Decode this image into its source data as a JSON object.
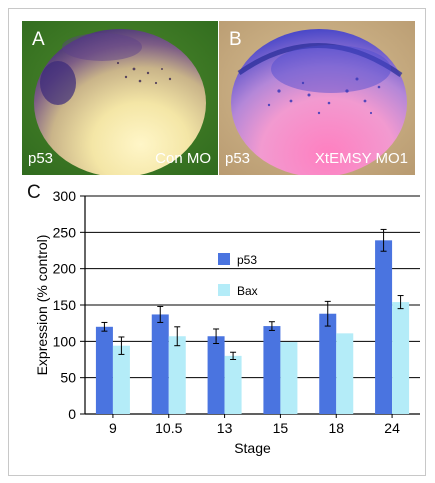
{
  "panel_a": {
    "letter": "A",
    "marker": "p53",
    "condition": "Con MO"
  },
  "panel_b": {
    "letter": "B",
    "marker": "p53",
    "condition": "XtEMSY MO1"
  },
  "panel_c_letter": "C",
  "chart_data": {
    "type": "bar",
    "categories": [
      "9",
      "10.5",
      "13",
      "15",
      "18",
      "24"
    ],
    "series": [
      {
        "name": "p53",
        "values": [
          120,
          137,
          107,
          121,
          138,
          239
        ],
        "errors": [
          6,
          11,
          10,
          6,
          17,
          15
        ],
        "color": "#4a74e0"
      },
      {
        "name": "Bax",
        "values": [
          94,
          107,
          80,
          99,
          111,
          154
        ],
        "errors": [
          12,
          13,
          5,
          0,
          0,
          9
        ],
        "color": "#b4ecf8"
      }
    ],
    "xlabel": "Stage",
    "ylabel": "Expression (% control)",
    "ylim": [
      0,
      300
    ],
    "yticks": [
      "0",
      "50",
      "100",
      "150",
      "200",
      "250",
      "300"
    ],
    "grid": true,
    "legend_position": "top-center"
  }
}
